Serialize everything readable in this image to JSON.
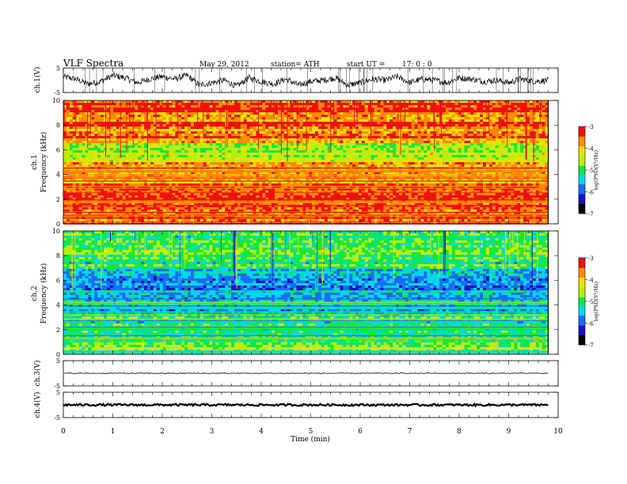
{
  "header": {
    "title": "VLF  Spectra",
    "date": "May 29, 2012",
    "station": "station= ATH",
    "start_label": "start  UT  =",
    "start_time": "17: 0  : 0"
  },
  "xaxis": {
    "label": "Time  (min)",
    "ticks": [
      "0",
      "1",
      "2",
      "3",
      "4",
      "5",
      "6",
      "7",
      "8",
      "9",
      "10"
    ],
    "xlim": [
      0,
      10
    ],
    "data_end": 9.8
  },
  "panels": {
    "ch1_wave": {
      "label": "ch.1(V)",
      "ticks": [
        "5",
        "-5"
      ],
      "ylim": [
        -5,
        5
      ]
    },
    "ch1_spec": {
      "label_line1": "ch.1",
      "label_line2": "Frequency  (kHz)",
      "ticks": [
        "10",
        "8",
        "6",
        "4",
        "2",
        "0"
      ],
      "ylim": [
        0,
        10
      ]
    },
    "ch2_spec": {
      "label_line1": "ch.2",
      "label_line2": "Frequency  (kHz)",
      "ticks": [
        "10",
        "8",
        "6",
        "4",
        "2",
        "0"
      ],
      "ylim": [
        0,
        10
      ]
    },
    "ch3_wave": {
      "label": "ch.3(V)",
      "ticks": [
        "5",
        "-5"
      ],
      "ylim": [
        -5,
        5
      ]
    },
    "ch4_wave": {
      "label": "ch.4(V)",
      "ticks": [
        "5",
        "-5"
      ],
      "ylim": [
        -5,
        5
      ]
    }
  },
  "colorbar": {
    "label": "log(PSD(V²/Hz)",
    "ticks": [
      "-3",
      "-4",
      "-5",
      "-6",
      "-7"
    ],
    "range": [
      -7,
      -3
    ],
    "colors": [
      "#000000",
      "#1a10c8",
      "#1a6cff",
      "#00d8e8",
      "#10e840",
      "#b8ee10",
      "#f0e000",
      "#ff8a00",
      "#ee1010",
      "#ffffff"
    ]
  },
  "chart_data": [
    {
      "type": "line",
      "channel": "ch.1",
      "ylabel": "ch.1(V)",
      "xlim": [
        0,
        10
      ],
      "ylim": [
        -5,
        5
      ],
      "x": [
        0,
        0.25,
        0.5,
        0.75,
        1,
        1.25,
        1.5,
        1.75,
        2,
        2.25,
        2.5,
        2.75,
        3,
        3.25,
        3.5,
        3.75,
        4,
        4.25,
        4.5,
        4.75,
        5,
        5.25,
        5.5,
        5.75,
        6,
        6.25,
        6.5,
        6.75,
        7,
        7.25,
        7.5,
        7.75,
        8,
        8.25,
        8.5,
        8.75,
        9,
        9.25,
        9.5,
        9.8
      ],
      "y": [
        1.5,
        0.5,
        -1.5,
        -0.5,
        2,
        1,
        -1,
        0.5,
        1.5,
        0.5,
        2,
        -2,
        -1,
        0,
        -2.5,
        1,
        -0.5,
        -1.5,
        0.5,
        -2,
        -0.5,
        0,
        1,
        -2,
        -1,
        0.5,
        0,
        1.5,
        -1,
        0.5,
        0,
        -1,
        1,
        0.5,
        -0.5,
        0,
        -1,
        0.5,
        -0.5,
        0
      ]
    },
    {
      "type": "heatmap",
      "channel": "ch.1",
      "ylabel": "Frequency (kHz)",
      "xlim": [
        0,
        10
      ],
      "ylim": [
        0,
        10
      ],
      "y_bands": [
        0.5,
        1.5,
        2.5,
        3.5,
        4.5,
        5.5,
        6.5,
        7.5,
        8.5,
        9.5
      ],
      "log_psd_by_band": [
        -3.4,
        -3.6,
        -3.6,
        -3.7,
        -3.6,
        -4.6,
        -4.2,
        -3.6,
        -3.5,
        -3.4
      ]
    },
    {
      "type": "heatmap",
      "channel": "ch.2",
      "ylabel": "Frequency (kHz)",
      "xlim": [
        0,
        10
      ],
      "ylim": [
        0,
        10
      ],
      "y_bands": [
        0.5,
        1.5,
        2.5,
        3.5,
        4.5,
        5.5,
        6.5,
        7.5,
        8.5,
        9.5
      ],
      "log_psd_by_band": [
        -4.6,
        -4.9,
        -5.1,
        -5.6,
        -5.6,
        -5.6,
        -5.5,
        -5.1,
        -5.0,
        -4.9
      ]
    },
    {
      "type": "line",
      "channel": "ch.3",
      "ylabel": "ch.3(V)",
      "xlim": [
        0,
        10
      ],
      "ylim": [
        -5,
        5
      ],
      "x": [
        0,
        9.8
      ],
      "y": [
        0,
        0
      ]
    },
    {
      "type": "line",
      "channel": "ch.4",
      "ylabel": "ch.4(V)",
      "xlim": [
        0,
        10
      ],
      "ylim": [
        -5,
        5
      ],
      "x": [
        0,
        9.8
      ],
      "y": [
        0,
        0
      ]
    }
  ]
}
